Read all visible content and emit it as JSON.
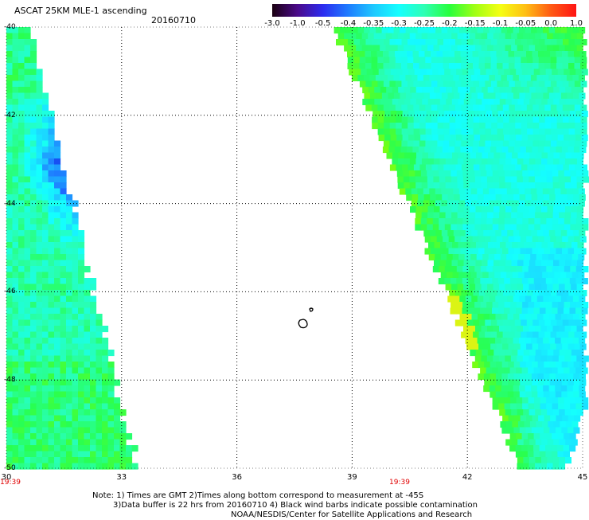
{
  "title": "ASCAT 25KM MLE-1 ascending",
  "date": "20160710",
  "colorbar": {
    "ticks": [
      "-3.0",
      "-1.0",
      "-0.5",
      "-0.4",
      "-0.35",
      "-0.3",
      "-0.25",
      "-0.2",
      "-0.15",
      "-0.1",
      "-0.05",
      "0.0",
      "1.0"
    ],
    "colors": [
      "#1a0010",
      "#4b0a8a",
      "#2c2cf0",
      "#1e7cff",
      "#1ec8ff",
      "#14ffff",
      "#2effb4",
      "#28ff3c",
      "#a0ff14",
      "#f5ff14",
      "#ffbe14",
      "#ff5a14",
      "#ff1414"
    ]
  },
  "axes": {
    "lat_labels": [
      "-40",
      "-42",
      "-44",
      "-46",
      "-48",
      "-50"
    ],
    "lon_labels": [
      "30",
      "33",
      "36",
      "39",
      "42",
      "45"
    ],
    "lon_values": [
      30,
      33,
      36,
      39,
      42,
      45
    ],
    "lat_values": [
      -40,
      -42,
      -44,
      -46,
      -48,
      -50
    ]
  },
  "times": {
    "left": "19:39",
    "mid": "19:39"
  },
  "notes": {
    "line1": "Note: 1) Times are GMT 2)Times along bottom correspond to measurement at -45S",
    "line2": "3)Data buffer is 22 hrs from 20160710 4) Black wind barbs indicate possible contamination",
    "line3": "NOAA/NESDIS/Center for Satellite Applications and Research"
  },
  "colors": {
    "green": "#32ff32",
    "cyan": "#10ffff",
    "blue": "#1464ff",
    "grid": "#000000"
  }
}
